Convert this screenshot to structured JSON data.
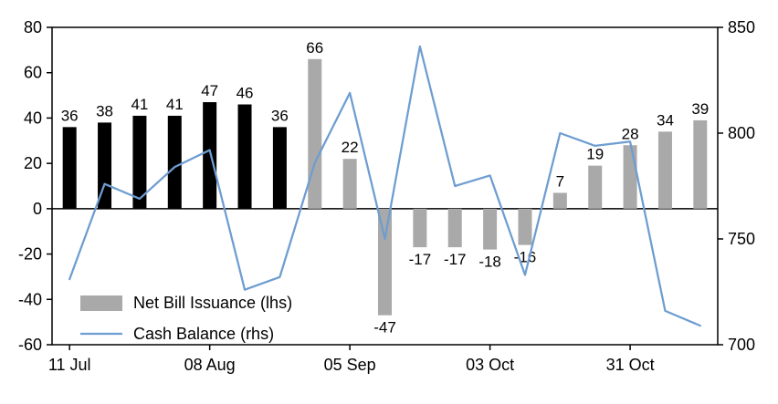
{
  "colors": {
    "bar_black": "#000000",
    "bar_gray": "#a9a9a9",
    "line_blue": "#6d9dd1",
    "axis": "#000000"
  },
  "chart_data": {
    "type": "bar",
    "n_points": 19,
    "x_axis": {
      "tick_labels": [
        "11 Jul",
        "08 Aug",
        "05 Sep",
        "03 Oct",
        "31 Oct"
      ],
      "tick_indices": [
        0,
        4,
        8,
        12,
        16
      ]
    },
    "left_axis": {
      "min": -60,
      "max": 80,
      "ticks": [
        80,
        60,
        40,
        20,
        0,
        -20,
        -40,
        -60
      ]
    },
    "right_axis": {
      "min": 700,
      "max": 850,
      "ticks": [
        850,
        800,
        750,
        700
      ]
    },
    "series": [
      {
        "name": "Net Bill Issuance (lhs)",
        "type": "bar",
        "axis": "left",
        "values": [
          36,
          38,
          41,
          41,
          47,
          46,
          36,
          66,
          22,
          -47,
          -17,
          -17,
          -18,
          -16,
          7,
          19,
          28,
          34,
          39
        ],
        "colors": [
          "#000000",
          "#000000",
          "#000000",
          "#000000",
          "#000000",
          "#000000",
          "#000000",
          "#a9a9a9",
          "#a9a9a9",
          "#a9a9a9",
          "#a9a9a9",
          "#a9a9a9",
          "#a9a9a9",
          "#a9a9a9",
          "#a9a9a9",
          "#a9a9a9",
          "#a9a9a9",
          "#a9a9a9",
          "#a9a9a9"
        ],
        "data_labels": true
      },
      {
        "name": "Cash Balance (rhs)",
        "type": "line",
        "axis": "right",
        "color": "#6d9dd1",
        "values": [
          731,
          776,
          769,
          784,
          792,
          726,
          732,
          786,
          819,
          750,
          841,
          775,
          780,
          733,
          800,
          794,
          796,
          716,
          709
        ]
      }
    ],
    "legend": {
      "position": "inside-bottom-left",
      "entries": [
        {
          "label": "Net Bill Issuance (lhs)",
          "swatch": "bar"
        },
        {
          "label": "Cash Balance (rhs)",
          "swatch": "line"
        }
      ]
    }
  }
}
